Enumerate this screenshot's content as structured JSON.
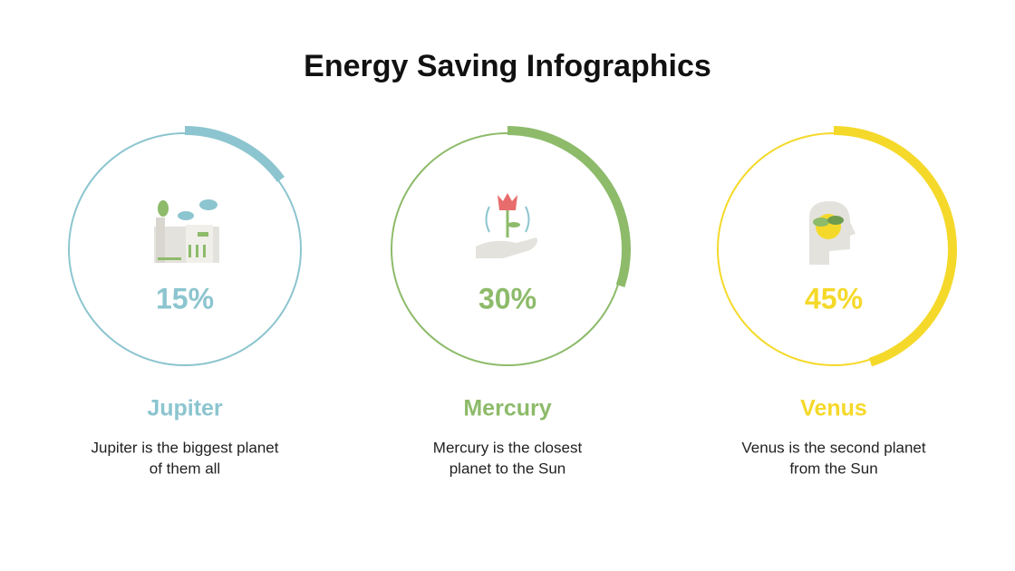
{
  "title": "Energy Saving Infographics",
  "items": [
    {
      "value": 15,
      "value_label": "15%",
      "name": "Jupiter",
      "description": [
        "Jupiter is the biggest planet",
        "of them all"
      ],
      "color": "#8cc5cf"
    },
    {
      "value": 30,
      "value_label": "30%",
      "name": "Mercury",
      "description": [
        "Mercury is the closest",
        "planet to the Sun"
      ],
      "color": "#8dbb6a"
    },
    {
      "value": 45,
      "value_label": "45%",
      "name": "Venus",
      "description": [
        "Venus is the second planet",
        "from the Sun"
      ],
      "color": "#f5d92a"
    }
  ]
}
